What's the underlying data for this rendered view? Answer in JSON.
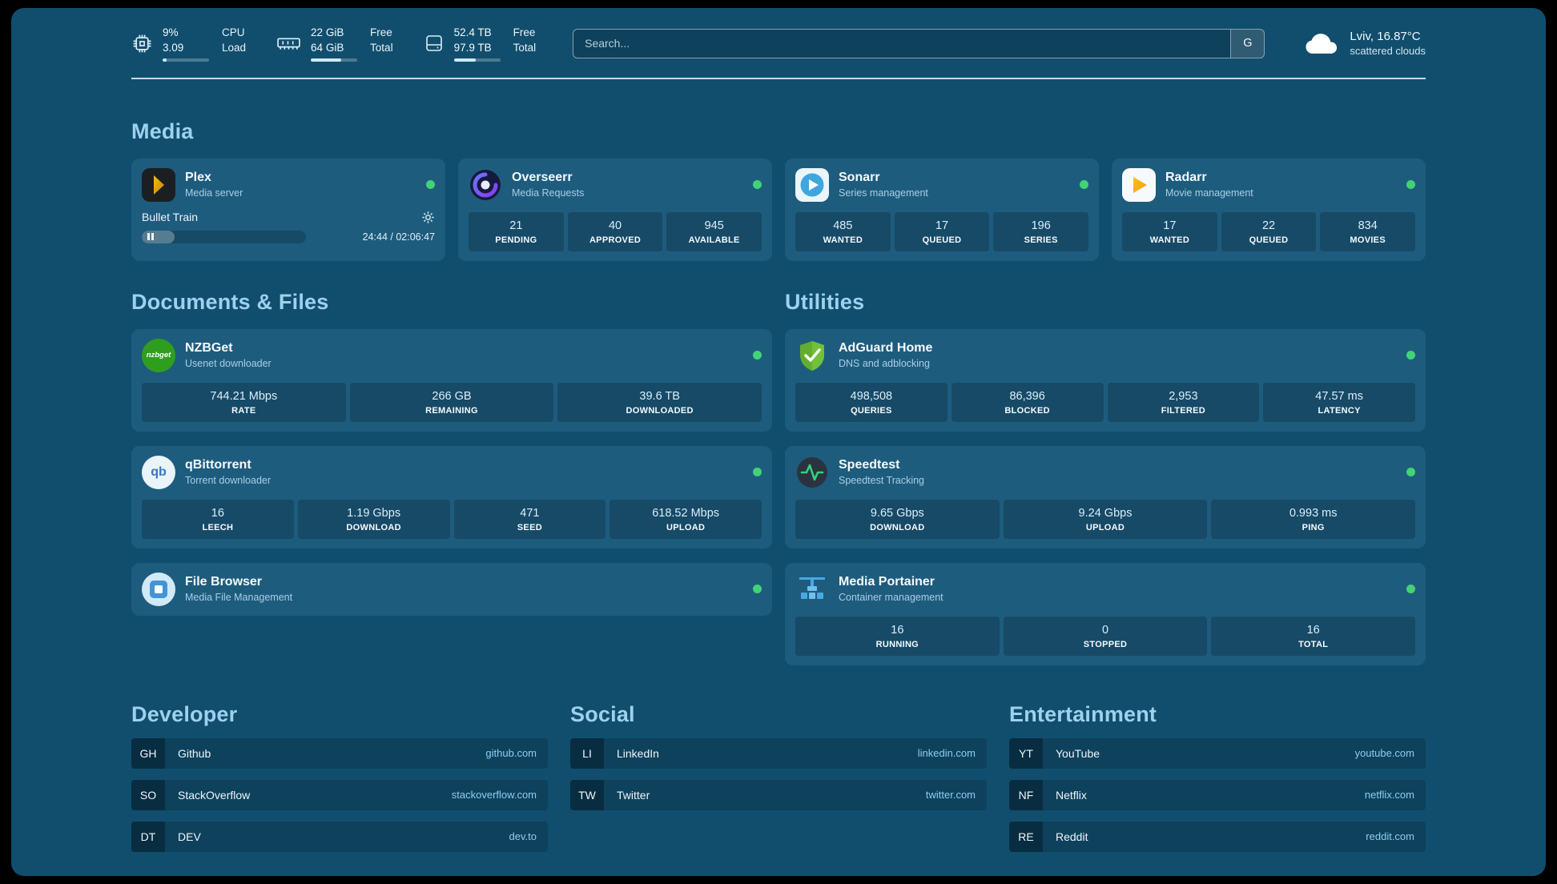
{
  "header": {
    "cpu": {
      "percent": "9%",
      "load": "3.09",
      "label_top": "CPU",
      "label_bottom": "Load",
      "bar_percent": 9
    },
    "memory": {
      "free": "22 GiB",
      "total": "64 GiB",
      "label_top": "Free",
      "label_bottom": "Total",
      "bar_percent": 66
    },
    "disk": {
      "free": "52.4 TB",
      "total": "97.9 TB",
      "label_top": "Free",
      "label_bottom": "Total",
      "bar_percent": 47
    },
    "search": {
      "placeholder": "Search...",
      "provider": "G"
    },
    "weather": {
      "location": "Lviv, 16.87°C",
      "condition": "scattered clouds"
    }
  },
  "colors": {
    "accent": "#9dd1ee",
    "status_green": "#41d376",
    "card": "#1e5c7e",
    "background": "#114e6d"
  },
  "sections": {
    "media": {
      "title": "Media",
      "plex": {
        "name": "Plex",
        "subtitle": "Media server",
        "now_playing": "Bullet Train",
        "time": "24:44 / 02:06:47",
        "progress_percent": 20
      },
      "overseerr": {
        "name": "Overseerr",
        "subtitle": "Media Requests",
        "stats": [
          {
            "value": "21",
            "label": "PENDING"
          },
          {
            "value": "40",
            "label": "APPROVED"
          },
          {
            "value": "945",
            "label": "AVAILABLE"
          }
        ]
      },
      "sonarr": {
        "name": "Sonarr",
        "subtitle": "Series management",
        "stats": [
          {
            "value": "485",
            "label": "WANTED"
          },
          {
            "value": "17",
            "label": "QUEUED"
          },
          {
            "value": "196",
            "label": "SERIES"
          }
        ]
      },
      "radarr": {
        "name": "Radarr",
        "subtitle": "Movie management",
        "stats": [
          {
            "value": "17",
            "label": "WANTED"
          },
          {
            "value": "22",
            "label": "QUEUED"
          },
          {
            "value": "834",
            "label": "MOVIES"
          }
        ]
      }
    },
    "documents": {
      "title": "Documents & Files",
      "nzbget": {
        "name": "NZBGet",
        "subtitle": "Usenet downloader",
        "stats": [
          {
            "value": "744.21 Mbps",
            "label": "RATE"
          },
          {
            "value": "266 GB",
            "label": "REMAINING"
          },
          {
            "value": "39.6 TB",
            "label": "DOWNLOADED"
          }
        ]
      },
      "qbittorrent": {
        "name": "qBittorrent",
        "subtitle": "Torrent downloader",
        "stats": [
          {
            "value": "16",
            "label": "LEECH"
          },
          {
            "value": "1.19 Gbps",
            "label": "DOWNLOAD"
          },
          {
            "value": "471",
            "label": "SEED"
          },
          {
            "value": "618.52 Mbps",
            "label": "UPLOAD"
          }
        ]
      },
      "filebrowser": {
        "name": "File Browser",
        "subtitle": "Media File Management"
      }
    },
    "utilities": {
      "title": "Utilities",
      "adguard": {
        "name": "AdGuard Home",
        "subtitle": "DNS and adblocking",
        "stats": [
          {
            "value": "498,508",
            "label": "QUERIES"
          },
          {
            "value": "86,396",
            "label": "BLOCKED"
          },
          {
            "value": "2,953",
            "label": "FILTERED"
          },
          {
            "value": "47.57 ms",
            "label": "LATENCY"
          }
        ]
      },
      "speedtest": {
        "name": "Speedtest",
        "subtitle": "Speedtest Tracking",
        "stats": [
          {
            "value": "9.65 Gbps",
            "label": "DOWNLOAD"
          },
          {
            "value": "9.24 Gbps",
            "label": "UPLOAD"
          },
          {
            "value": "0.993 ms",
            "label": "PING"
          }
        ]
      },
      "portainer": {
        "name": "Media Portainer",
        "subtitle": "Container management",
        "stats": [
          {
            "value": "16",
            "label": "RUNNING"
          },
          {
            "value": "0",
            "label": "STOPPED"
          },
          {
            "value": "16",
            "label": "TOTAL"
          }
        ]
      }
    }
  },
  "bookmarks": {
    "developer": {
      "title": "Developer",
      "items": [
        {
          "abbr": "GH",
          "name": "Github",
          "url": "github.com"
        },
        {
          "abbr": "SO",
          "name": "StackOverflow",
          "url": "stackoverflow.com"
        },
        {
          "abbr": "DT",
          "name": "DEV",
          "url": "dev.to"
        }
      ]
    },
    "social": {
      "title": "Social",
      "items": [
        {
          "abbr": "LI",
          "name": "LinkedIn",
          "url": "linkedin.com"
        },
        {
          "abbr": "TW",
          "name": "Twitter",
          "url": "twitter.com"
        }
      ]
    },
    "entertainment": {
      "title": "Entertainment",
      "items": [
        {
          "abbr": "YT",
          "name": "YouTube",
          "url": "youtube.com"
        },
        {
          "abbr": "NF",
          "name": "Netflix",
          "url": "netflix.com"
        },
        {
          "abbr": "RE",
          "name": "Reddit",
          "url": "reddit.com"
        }
      ]
    }
  }
}
